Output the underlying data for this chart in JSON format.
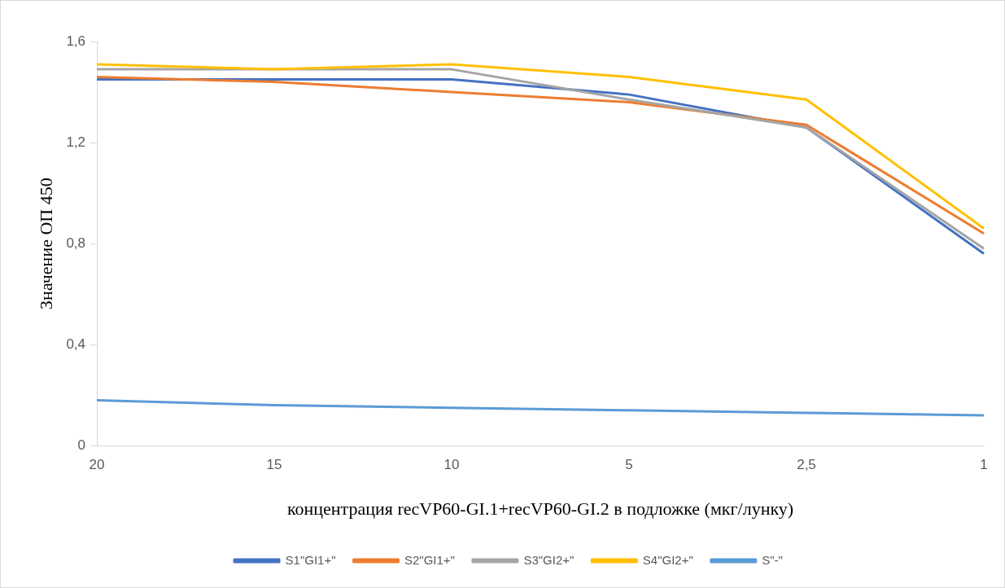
{
  "chart_data": {
    "type": "line",
    "xlabel": "концентрация recVP60-GI.1+recVP60-GI.2 в подложке (мкг/лунку)",
    "ylabel": "Значение ОП 450",
    "categories": [
      "20",
      "15",
      "10",
      "5",
      "2,5",
      "1"
    ],
    "series": [
      {
        "name": "S1\"GI1+\"",
        "color": "#4472c4",
        "values": [
          1.45,
          1.45,
          1.45,
          1.39,
          1.26,
          0.76
        ]
      },
      {
        "name": "S2\"GI1+\"",
        "color": "#ed7d31",
        "values": [
          1.46,
          1.44,
          1.4,
          1.36,
          1.27,
          0.84
        ]
      },
      {
        "name": "S3\"GI2+\"",
        "color": "#a5a5a5",
        "values": [
          1.49,
          1.49,
          1.49,
          1.37,
          1.26,
          0.78
        ]
      },
      {
        "name": "S4\"GI2+\"",
        "color": "#ffc000",
        "values": [
          1.51,
          1.49,
          1.51,
          1.46,
          1.37,
          0.86
        ]
      },
      {
        "name": "S\"-\"",
        "color": "#5b9bd5",
        "values": [
          0.18,
          0.16,
          0.15,
          0.14,
          0.13,
          0.12
        ]
      }
    ],
    "ylim": [
      0,
      1.6
    ],
    "yticks": [
      0,
      {
        "value": 0.4,
        "label": "0,4"
      },
      {
        "value": 0.8,
        "label": "0,8"
      },
      {
        "value": 1.2,
        "label": "1,2"
      },
      {
        "value": 1.6,
        "label": "1,6"
      }
    ],
    "grid": false,
    "legend": "bottom",
    "marker": "none",
    "line_style": "solid"
  }
}
